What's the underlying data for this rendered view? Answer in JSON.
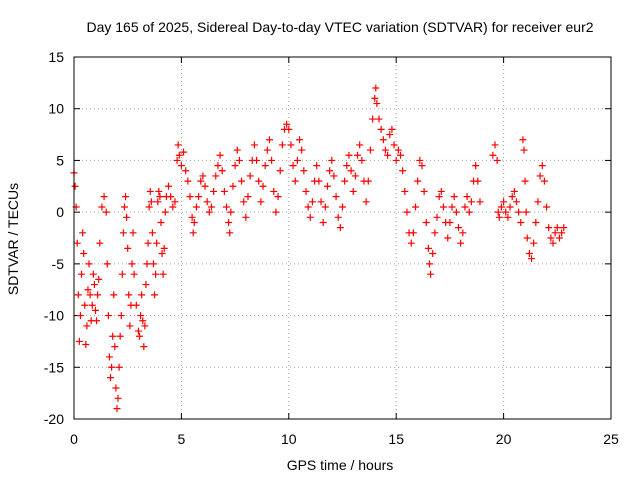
{
  "chart_data": {
    "type": "scatter",
    "title": "Day 165 of 2025, Sidereal Day-to-day VTEC variation (SDTVAR) for receiver eur2",
    "xlabel": "GPS time / hours",
    "ylabel": "SDTVAR / TECUs",
    "xlim": [
      0,
      25
    ],
    "ylim": [
      -20,
      15
    ],
    "xticks": [
      0,
      5,
      10,
      15,
      20,
      25
    ],
    "yticks": [
      -20,
      -15,
      -10,
      -5,
      0,
      5,
      10,
      15
    ],
    "grid": true,
    "marker": "+",
    "color": "#ff0000",
    "series": [
      {
        "name": "SDTVAR",
        "points": [
          [
            0.0,
            3.8
          ],
          [
            0.05,
            2.5
          ],
          [
            0.1,
            0.5
          ],
          [
            0.15,
            -3.0
          ],
          [
            0.2,
            -8.0
          ],
          [
            0.25,
            -12.5
          ],
          [
            0.3,
            -10.0
          ],
          [
            0.35,
            -6.0
          ],
          [
            0.4,
            -2.0
          ],
          [
            0.45,
            -4.0
          ],
          [
            0.5,
            -9.0
          ],
          [
            0.55,
            -12.8
          ],
          [
            0.6,
            -11.0
          ],
          [
            0.65,
            -7.5
          ],
          [
            0.7,
            -5.0
          ],
          [
            0.75,
            -8.0
          ],
          [
            0.8,
            -10.5
          ],
          [
            0.85,
            -9.0
          ],
          [
            0.9,
            -6.0
          ],
          [
            0.95,
            -7.0
          ],
          [
            1.0,
            -9.5
          ],
          [
            1.05,
            -10.5
          ],
          [
            1.1,
            -8.0
          ],
          [
            1.15,
            -6.5
          ],
          [
            1.2,
            -3.0
          ],
          [
            1.3,
            0.5
          ],
          [
            1.4,
            1.5
          ],
          [
            1.5,
            0.0
          ],
          [
            1.55,
            -5.0
          ],
          [
            1.6,
            -10.0
          ],
          [
            1.65,
            -14.0
          ],
          [
            1.7,
            -16.0
          ],
          [
            1.75,
            -15.0
          ],
          [
            1.8,
            -12.0
          ],
          [
            1.85,
            -8.0
          ],
          [
            1.9,
            -13.0
          ],
          [
            1.95,
            -17.0
          ],
          [
            2.0,
            -19.0
          ],
          [
            2.05,
            -18.0
          ],
          [
            2.1,
            -15.0
          ],
          [
            2.15,
            -12.0
          ],
          [
            2.2,
            -10.0
          ],
          [
            2.25,
            -6.0
          ],
          [
            2.3,
            -2.0
          ],
          [
            2.35,
            0.5
          ],
          [
            2.4,
            1.5
          ],
          [
            2.45,
            -0.5
          ],
          [
            2.5,
            -3.5
          ],
          [
            2.55,
            -8.0
          ],
          [
            2.6,
            -11.0
          ],
          [
            2.65,
            -9.0
          ],
          [
            2.7,
            -5.0
          ],
          [
            2.75,
            -2.0
          ],
          [
            2.8,
            -6.0
          ],
          [
            2.9,
            -9.0
          ],
          [
            3.0,
            -11.5
          ],
          [
            3.05,
            -12.0
          ],
          [
            3.1,
            -10.0
          ],
          [
            3.15,
            -8.0
          ],
          [
            3.2,
            -10.5
          ],
          [
            3.25,
            -13.0
          ],
          [
            3.3,
            -11.0
          ],
          [
            3.35,
            -7.0
          ],
          [
            3.4,
            -5.0
          ],
          [
            3.45,
            -3.0
          ],
          [
            3.5,
            0.5
          ],
          [
            3.55,
            2.0
          ],
          [
            3.6,
            1.0
          ],
          [
            3.65,
            -2.0
          ],
          [
            3.7,
            -5.0
          ],
          [
            3.75,
            -8.0
          ],
          [
            3.8,
            -6.0
          ],
          [
            3.85,
            -3.0
          ],
          [
            3.9,
            1.0
          ],
          [
            3.95,
            2.0
          ],
          [
            4.0,
            1.5
          ],
          [
            4.05,
            -1.0
          ],
          [
            4.1,
            -4.0
          ],
          [
            4.15,
            -6.0
          ],
          [
            4.2,
            -3.5
          ],
          [
            4.25,
            0.0
          ],
          [
            4.3,
            1.5
          ],
          [
            4.4,
            2.5
          ],
          [
            4.5,
            1.5
          ],
          [
            4.6,
            0.5
          ],
          [
            4.7,
            1.0
          ],
          [
            4.8,
            5.0
          ],
          [
            4.85,
            6.5
          ],
          [
            4.9,
            5.5
          ],
          [
            5.0,
            4.5
          ],
          [
            5.1,
            5.8
          ],
          [
            5.2,
            4.0
          ],
          [
            5.3,
            3.0
          ],
          [
            5.4,
            1.5
          ],
          [
            5.5,
            -0.5
          ],
          [
            5.55,
            -2.0
          ],
          [
            5.6,
            -1.0
          ],
          [
            5.7,
            0.5
          ],
          [
            5.8,
            1.5
          ],
          [
            5.9,
            3.0
          ],
          [
            6.0,
            3.5
          ],
          [
            6.1,
            2.5
          ],
          [
            6.2,
            1.0
          ],
          [
            6.3,
            0.0
          ],
          [
            6.4,
            0.5
          ],
          [
            6.5,
            2.0
          ],
          [
            6.6,
            3.5
          ],
          [
            6.7,
            4.5
          ],
          [
            6.8,
            5.5
          ],
          [
            6.9,
            4.0
          ],
          [
            7.0,
            2.0
          ],
          [
            7.1,
            0.5
          ],
          [
            7.2,
            -1.0
          ],
          [
            7.25,
            -2.0
          ],
          [
            7.3,
            0.0
          ],
          [
            7.4,
            2.5
          ],
          [
            7.5,
            4.5
          ],
          [
            7.6,
            6.0
          ],
          [
            7.7,
            5.0
          ],
          [
            7.8,
            3.0
          ],
          [
            7.9,
            1.0
          ],
          [
            8.0,
            -0.5
          ],
          [
            8.1,
            1.5
          ],
          [
            8.2,
            3.5
          ],
          [
            8.3,
            5.0
          ],
          [
            8.4,
            6.5
          ],
          [
            8.5,
            5.0
          ],
          [
            8.6,
            3.0
          ],
          [
            8.7,
            1.0
          ],
          [
            8.8,
            2.5
          ],
          [
            8.9,
            4.5
          ],
          [
            9.0,
            6.0
          ],
          [
            9.1,
            7.0
          ],
          [
            9.2,
            5.0
          ],
          [
            9.3,
            2.0
          ],
          [
            9.4,
            0.0
          ],
          [
            9.5,
            1.5
          ],
          [
            9.6,
            4.0
          ],
          [
            9.7,
            6.5
          ],
          [
            9.8,
            8.0
          ],
          [
            9.9,
            8.5
          ],
          [
            10.0,
            8.0
          ],
          [
            10.1,
            6.5
          ],
          [
            10.2,
            4.5
          ],
          [
            10.3,
            3.0
          ],
          [
            10.4,
            5.0
          ],
          [
            10.5,
            7.0
          ],
          [
            10.6,
            6.0
          ],
          [
            10.7,
            4.0
          ],
          [
            10.8,
            2.0
          ],
          [
            10.9,
            0.5
          ],
          [
            11.0,
            -0.5
          ],
          [
            11.1,
            1.0
          ],
          [
            11.2,
            3.0
          ],
          [
            11.3,
            4.5
          ],
          [
            11.4,
            3.0
          ],
          [
            11.5,
            1.0
          ],
          [
            11.6,
            -1.0
          ],
          [
            11.7,
            0.5
          ],
          [
            11.8,
            2.5
          ],
          [
            11.9,
            4.0
          ],
          [
            12.0,
            5.0
          ],
          [
            12.1,
            3.5
          ],
          [
            12.2,
            1.5
          ],
          [
            12.3,
            -0.5
          ],
          [
            12.4,
            -1.5
          ],
          [
            12.5,
            0.5
          ],
          [
            12.6,
            3.0
          ],
          [
            12.7,
            4.5
          ],
          [
            12.8,
            5.5
          ],
          [
            12.9,
            4.0
          ],
          [
            13.0,
            2.0
          ],
          [
            13.1,
            3.5
          ],
          [
            13.2,
            5.5
          ],
          [
            13.3,
            6.5
          ],
          [
            13.4,
            5.0
          ],
          [
            13.5,
            3.0
          ],
          [
            13.6,
            1.0
          ],
          [
            13.7,
            3.0
          ],
          [
            13.8,
            6.0
          ],
          [
            13.9,
            9.0
          ],
          [
            14.0,
            11.0
          ],
          [
            14.05,
            12.0
          ],
          [
            14.1,
            10.5
          ],
          [
            14.2,
            9.0
          ],
          [
            14.3,
            8.0
          ],
          [
            14.4,
            7.0
          ],
          [
            14.5,
            6.0
          ],
          [
            14.6,
            5.5
          ],
          [
            14.7,
            7.5
          ],
          [
            14.8,
            8.0
          ],
          [
            14.9,
            6.5
          ],
          [
            15.0,
            5.0
          ],
          [
            15.1,
            6.0
          ],
          [
            15.2,
            5.5
          ],
          [
            15.3,
            4.0
          ],
          [
            15.4,
            2.0
          ],
          [
            15.5,
            0.0
          ],
          [
            15.6,
            -2.0
          ],
          [
            15.7,
            -3.0
          ],
          [
            15.8,
            -2.0
          ],
          [
            15.9,
            0.5
          ],
          [
            16.0,
            3.0
          ],
          [
            16.1,
            5.0
          ],
          [
            16.2,
            4.5
          ],
          [
            16.3,
            2.0
          ],
          [
            16.4,
            -1.0
          ],
          [
            16.5,
            -3.5
          ],
          [
            16.55,
            -5.0
          ],
          [
            16.6,
            -6.0
          ],
          [
            16.7,
            -4.0
          ],
          [
            16.8,
            -2.0
          ],
          [
            16.9,
            -0.5
          ],
          [
            17.0,
            1.5
          ],
          [
            17.1,
            2.0
          ],
          [
            17.2,
            0.5
          ],
          [
            17.3,
            -1.0
          ],
          [
            17.4,
            -2.5
          ],
          [
            17.5,
            -1.0
          ],
          [
            17.6,
            0.5
          ],
          [
            17.7,
            1.5
          ],
          [
            17.8,
            0.0
          ],
          [
            17.9,
            -1.5
          ],
          [
            18.0,
            -3.0
          ],
          [
            18.1,
            -2.0
          ],
          [
            18.2,
            0.5
          ],
          [
            18.3,
            1.5
          ],
          [
            18.4,
            0.0
          ],
          [
            18.5,
            1.0
          ],
          [
            18.6,
            3.0
          ],
          [
            18.7,
            4.5
          ],
          [
            18.8,
            3.0
          ],
          [
            18.9,
            1.0
          ],
          [
            19.5,
            5.5
          ],
          [
            19.6,
            6.5
          ],
          [
            19.7,
            5.0
          ],
          [
            19.75,
            0.0
          ],
          [
            19.8,
            -0.5
          ],
          [
            19.9,
            0.5
          ],
          [
            20.0,
            1.0
          ],
          [
            20.1,
            0.0
          ],
          [
            20.2,
            -0.5
          ],
          [
            20.3,
            0.5
          ],
          [
            20.4,
            1.5
          ],
          [
            20.5,
            2.0
          ],
          [
            20.6,
            1.0
          ],
          [
            20.7,
            0.0
          ],
          [
            20.8,
            -1.0
          ],
          [
            20.9,
            7.0
          ],
          [
            20.95,
            6.0
          ],
          [
            21.0,
            3.0
          ],
          [
            21.05,
            0.0
          ],
          [
            21.1,
            -2.5
          ],
          [
            21.2,
            -4.0
          ],
          [
            21.3,
            -4.5
          ],
          [
            21.4,
            -3.0
          ],
          [
            21.5,
            -1.0
          ],
          [
            21.6,
            1.0
          ],
          [
            21.7,
            3.5
          ],
          [
            21.8,
            4.5
          ],
          [
            21.9,
            3.0
          ],
          [
            22.0,
            0.5
          ],
          [
            22.1,
            -1.5
          ],
          [
            22.2,
            -2.5
          ],
          [
            22.3,
            -3.0
          ],
          [
            22.4,
            -2.0
          ],
          [
            22.5,
            -1.5
          ],
          [
            22.6,
            -2.5
          ],
          [
            22.7,
            -2.0
          ],
          [
            22.8,
            -1.5
          ]
        ]
      }
    ]
  }
}
